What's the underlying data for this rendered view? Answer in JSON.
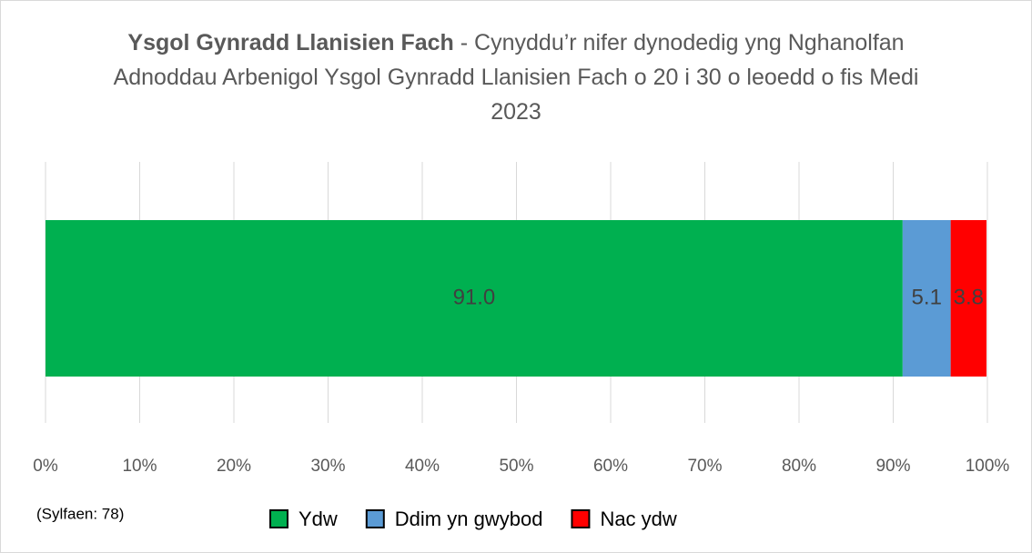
{
  "chart_data": {
    "type": "stacked_barh",
    "title_bold": "Ysgol Gynradd Llanisien Fach",
    "title": "- Cynyddu’r nifer dynodedig yng Nghanolfan Adnoddau Arbenigol Ysgol Gynradd Llanisien Fach o 20 i 30 o leoedd o fis Medi 2023",
    "note": "(Sylfaen: 78)",
    "series": [
      {
        "name": "Ydw",
        "color": "#00b050",
        "values": [
          91.0
        ],
        "value_labels": [
          "91.0"
        ]
      },
      {
        "name": "Ddim yn gwybod",
        "color": "#5b9bd5",
        "values": [
          5.1
        ]
      },
      {
        "name": "Nac ydw",
        "color": "#ff0000",
        "values": [
          3.8
        ]
      }
    ],
    "xlim": [
      0,
      100
    ],
    "xticks": [
      {
        "value": 0,
        "label": "0%"
      },
      {
        "value": 10,
        "label": "10%"
      },
      {
        "value": 20,
        "label": "20%"
      },
      {
        "value": 30,
        "label": "30%"
      },
      {
        "value": 40,
        "label": "40%"
      },
      {
        "value": 50,
        "label": "50%"
      },
      {
        "value": 60,
        "label": "60%"
      },
      {
        "value": 70,
        "label": "70%"
      },
      {
        "value": 80,
        "label": "80%"
      },
      {
        "value": 90,
        "label": "90%"
      },
      {
        "value": 100,
        "label": "100%"
      }
    ],
    "grid": true,
    "legend": "bottom"
  }
}
